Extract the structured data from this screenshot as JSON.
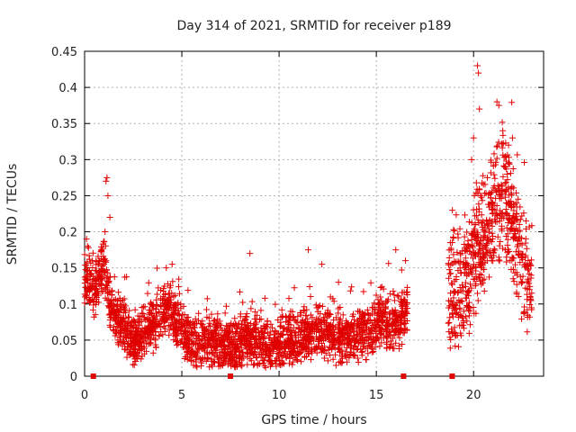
{
  "chart_data": {
    "type": "scatter",
    "title": "Day 314 of 2021, SRMTID for receiver p189",
    "xlabel": "GPS time / hours",
    "ylabel": "SRMTID / TECUs",
    "xlim": [
      0,
      23.6
    ],
    "ylim": [
      0,
      0.45
    ],
    "xticks": [
      0,
      5,
      10,
      15,
      20
    ],
    "yticks": [
      0,
      0.05,
      0.1,
      0.15,
      0.2,
      0.25,
      0.3,
      0.35,
      0.4,
      0.45
    ],
    "ytick_labels": [
      "0",
      "0.05",
      "0.1",
      "0.15",
      "0.2",
      "0.25",
      "0.3",
      "0.35",
      "0.4",
      "0.45"
    ],
    "grid": true,
    "marker": "+",
    "marker_color": "#e00000",
    "series": [
      {
        "name": "SRMTID",
        "color": "#e00000",
        "segments": [
          {
            "start": 0.0,
            "end": 16.6,
            "level_profile": [
              [
                0.0,
                0.13
              ],
              [
                0.5,
                0.12
              ],
              [
                1.0,
                0.16
              ],
              [
                1.3,
                0.1
              ],
              [
                1.7,
                0.08
              ],
              [
                2.5,
                0.05
              ],
              [
                3.5,
                0.07
              ],
              [
                4.2,
                0.1
              ],
              [
                4.8,
                0.07
              ],
              [
                5.5,
                0.04
              ],
              [
                6.5,
                0.05
              ],
              [
                7.5,
                0.04
              ],
              [
                8.5,
                0.05
              ],
              [
                9.5,
                0.04
              ],
              [
                10.5,
                0.05
              ],
              [
                11.5,
                0.06
              ],
              [
                12.5,
                0.06
              ],
              [
                13.5,
                0.05
              ],
              [
                14.5,
                0.06
              ],
              [
                15.2,
                0.08
              ],
              [
                16.0,
                0.07
              ],
              [
                16.6,
                0.09
              ]
            ],
            "spread": 0.035
          },
          {
            "start": 18.7,
            "end": 23.0,
            "level_profile": [
              [
                18.7,
                0.1
              ],
              [
                19.3,
                0.12
              ],
              [
                19.8,
                0.14
              ],
              [
                20.2,
                0.18
              ],
              [
                20.6,
                0.2
              ],
              [
                21.0,
                0.24
              ],
              [
                21.5,
                0.25
              ],
              [
                22.0,
                0.21
              ],
              [
                22.5,
                0.15
              ],
              [
                23.0,
                0.12
              ]
            ],
            "spread": 0.08
          }
        ],
        "highlights": [
          {
            "x": 0.1,
            "y": 0.19
          },
          {
            "x": 0.15,
            "y": 0.18
          },
          {
            "x": 0.4,
            "y": 0.16
          },
          {
            "x": 1.1,
            "y": 0.27
          },
          {
            "x": 1.15,
            "y": 0.275
          },
          {
            "x": 1.2,
            "y": 0.25
          },
          {
            "x": 1.05,
            "y": 0.2
          },
          {
            "x": 1.3,
            "y": 0.22
          },
          {
            "x": 4.2,
            "y": 0.15
          },
          {
            "x": 4.5,
            "y": 0.155
          },
          {
            "x": 8.5,
            "y": 0.17
          },
          {
            "x": 11.5,
            "y": 0.175
          },
          {
            "x": 12.2,
            "y": 0.155
          },
          {
            "x": 16.0,
            "y": 0.175
          },
          {
            "x": 16.5,
            "y": 0.16
          },
          {
            "x": 20.2,
            "y": 0.43
          },
          {
            "x": 20.25,
            "y": 0.42
          },
          {
            "x": 20.3,
            "y": 0.37
          },
          {
            "x": 21.2,
            "y": 0.38
          },
          {
            "x": 21.3,
            "y": 0.375
          },
          {
            "x": 21.5,
            "y": 0.34
          },
          {
            "x": 22.0,
            "y": 0.33
          },
          {
            "x": 21.8,
            "y": 0.32
          },
          {
            "x": 20.0,
            "y": 0.33
          },
          {
            "x": 19.9,
            "y": 0.3
          },
          {
            "x": 22.2,
            "y": 0.24
          },
          {
            "x": 21.6,
            "y": 0.29
          }
        ]
      }
    ],
    "baseline_markers": [
      0.45,
      7.5,
      16.4,
      18.9
    ]
  }
}
